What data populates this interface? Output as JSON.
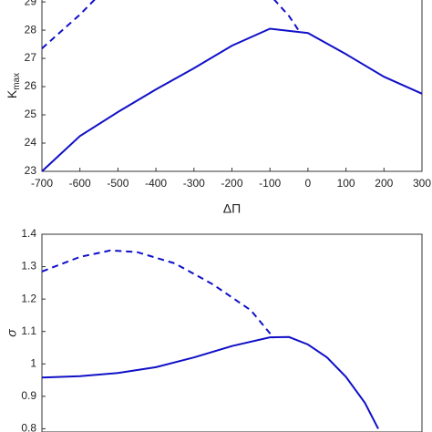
{
  "chart_data": [
    {
      "type": "line",
      "xlabel": "ΔΠ",
      "ylabel": {
        "text": "K",
        "subscript": "max"
      },
      "xlim": [
        -700,
        300
      ],
      "ylim": [
        23,
        29.1
      ],
      "xticks": [
        -700,
        -600,
        -500,
        -400,
        -300,
        -200,
        -100,
        0,
        100,
        200,
        300
      ],
      "yticks": [
        23,
        24,
        25,
        26,
        27,
        28,
        29
      ],
      "series": [
        {
          "color": "#1010c8",
          "dash": false,
          "x": [
            -700,
            -600,
            -500,
            -400,
            -300,
            -200,
            -100,
            0,
            100,
            200,
            300
          ],
          "values": [
            23,
            24.25,
            25.1,
            25.9,
            26.65,
            27.45,
            28.05,
            27.9,
            27.15,
            26.35,
            25.75
          ]
        },
        {
          "color": "#1010c8",
          "dash": true,
          "x": [
            -700,
            -650,
            -600,
            -560,
            -300,
            -90,
            -50,
            -20
          ],
          "values": [
            27.35,
            27.95,
            28.55,
            29.1,
            null,
            29.1,
            28.5,
            27.9
          ]
        }
      ]
    },
    {
      "type": "line",
      "ylabel": "σ",
      "xlim": [
        -700,
        300
      ],
      "ylim": [
        0.79,
        1.4
      ],
      "yticks": [
        0.8,
        0.9,
        1,
        1.1,
        1.2,
        1.3,
        1.4
      ],
      "series": [
        {
          "color": "#1010c8",
          "dash": false,
          "x": [
            -700,
            -600,
            -500,
            -400,
            -300,
            -200,
            -100,
            -50,
            0,
            50,
            100,
            150,
            185
          ],
          "values": [
            0.958,
            0.962,
            0.972,
            0.99,
            1.02,
            1.055,
            1.082,
            1.083,
            1.06,
            1.02,
            0.96,
            0.88,
            0.8
          ]
        },
        {
          "color": "#1010c8",
          "dash": true,
          "x": [
            -700,
            -600,
            -520,
            -450,
            -350,
            -250,
            -150,
            -90
          ],
          "values": [
            1.285,
            1.33,
            1.35,
            1.345,
            1.31,
            1.245,
            1.165,
            1.08
          ]
        }
      ]
    }
  ]
}
